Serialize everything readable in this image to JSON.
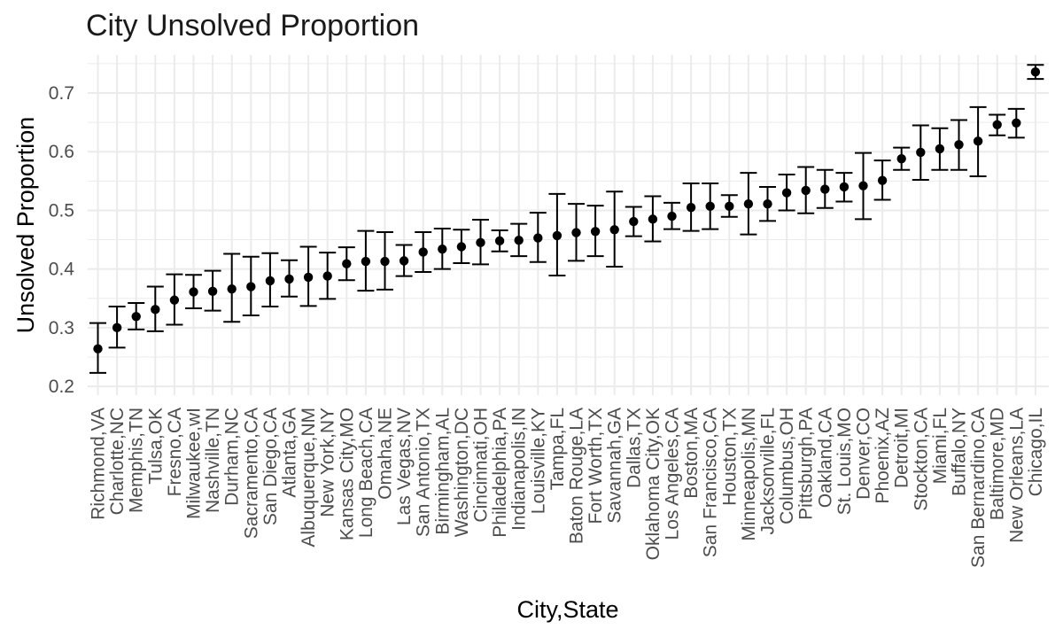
{
  "chart_data": {
    "type": "scatter",
    "title": "City Unsolved Proportion",
    "xlabel": "City,State",
    "ylabel": "Unsolved Proportion",
    "ylim": [
      0.185,
      0.765
    ],
    "yticks": [
      "0.2",
      "0.3",
      "0.4",
      "0.5",
      "0.6",
      "0.7"
    ],
    "grid": true,
    "point_color": "#000000",
    "grid_color": "#ebebeb",
    "categories": [
      "Richmond,VA",
      "Charlotte,NC",
      "Memphis,TN",
      "Tulsa,OK",
      "Fresno,CA",
      "Milwaukee,wI",
      "Nashville,TN",
      "Durham,NC",
      "Sacramento,CA",
      "San Diego,CA",
      "Atlanta,GA",
      "Albuquerque,NM",
      "New York,NY",
      "Kansas City,MO",
      "Long Beach,CA",
      "Omaha,NE",
      "Las Vegas,NV",
      "San Antonio,TX",
      "Birmingham,AL",
      "Washington,DC",
      "Cincinnati,OH",
      "Philadelphia,PA",
      "Indianapolis,IN",
      "Louisville,KY",
      "Tampa,FL",
      "Baton Rouge,LA",
      "Fort Worth,TX",
      "Savannah,GA",
      "Dallas,TX",
      "Oklahoma City,OK",
      "Los Angeles,CA",
      "Boston,MA",
      "San Francisco,CA",
      "Houston,TX",
      "Minneapolis,MN",
      "Jacksonville,FL",
      "Columbus,OH",
      "Pittsburgh,PA",
      "Oakland,CA",
      "St. Louis,MO",
      "Denver,CO",
      "Phoenix,AZ",
      "Detroit,MI",
      "Stockton,CA",
      "Miami,FL",
      "Buffalo,NY",
      "San Bernardino,CA",
      "Baltimore,MD",
      "New Orleans,LA",
      "Chicago,IL"
    ],
    "series": [
      {
        "estimate": [
          0.264,
          0.3,
          0.319,
          0.331,
          0.347,
          0.361,
          0.362,
          0.366,
          0.37,
          0.38,
          0.383,
          0.386,
          0.388,
          0.409,
          0.413,
          0.413,
          0.414,
          0.429,
          0.434,
          0.438,
          0.445,
          0.448,
          0.449,
          0.453,
          0.457,
          0.462,
          0.464,
          0.467,
          0.481,
          0.485,
          0.49,
          0.505,
          0.507,
          0.507,
          0.511,
          0.511,
          0.53,
          0.534,
          0.536,
          0.54,
          0.542,
          0.551,
          0.588,
          0.599,
          0.605,
          0.612,
          0.618,
          0.646,
          0.649,
          0.736
        ],
        "lower": [
          0.223,
          0.266,
          0.297,
          0.294,
          0.305,
          0.333,
          0.329,
          0.31,
          0.321,
          0.336,
          0.353,
          0.337,
          0.349,
          0.381,
          0.363,
          0.365,
          0.388,
          0.395,
          0.4,
          0.41,
          0.408,
          0.43,
          0.422,
          0.412,
          0.389,
          0.414,
          0.422,
          0.404,
          0.456,
          0.447,
          0.468,
          0.465,
          0.468,
          0.489,
          0.459,
          0.482,
          0.5,
          0.495,
          0.504,
          0.515,
          0.485,
          0.518,
          0.569,
          0.552,
          0.569,
          0.569,
          0.558,
          0.628,
          0.624,
          0.724
        ],
        "upper": [
          0.308,
          0.336,
          0.342,
          0.37,
          0.391,
          0.39,
          0.397,
          0.426,
          0.421,
          0.427,
          0.415,
          0.438,
          0.428,
          0.437,
          0.465,
          0.463,
          0.441,
          0.463,
          0.469,
          0.467,
          0.484,
          0.466,
          0.477,
          0.496,
          0.528,
          0.511,
          0.508,
          0.532,
          0.506,
          0.524,
          0.513,
          0.546,
          0.546,
          0.526,
          0.564,
          0.54,
          0.561,
          0.574,
          0.569,
          0.564,
          0.598,
          0.585,
          0.607,
          0.645,
          0.64,
          0.654,
          0.676,
          0.663,
          0.673,
          0.748
        ]
      }
    ]
  }
}
